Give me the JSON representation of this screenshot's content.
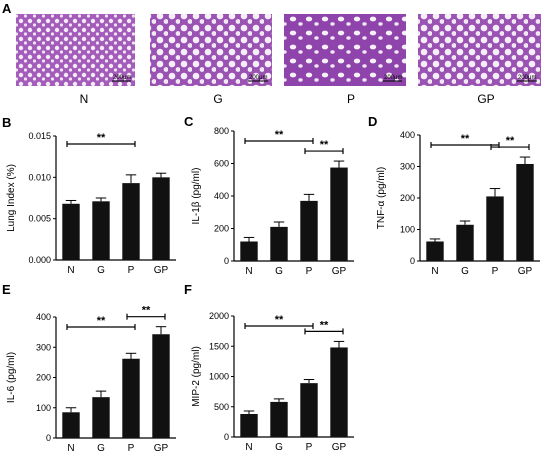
{
  "panel_a": {
    "letter": "A",
    "images": [
      {
        "label": "N",
        "scale": "200μm"
      },
      {
        "label": "G",
        "scale": "200μm"
      },
      {
        "label": "P",
        "scale": "200μm"
      },
      {
        "label": "GP",
        "scale": "200μm"
      }
    ]
  },
  "colors": {
    "bar": "#111111",
    "tissue": "#a259b8",
    "tissue_dark": "#7a3e98",
    "tissue_light": "#c99bd6"
  },
  "chart_data": [
    {
      "letter": "B",
      "type": "bar",
      "categories": [
        "N",
        "G",
        "P",
        "GP"
      ],
      "values": [
        0.0068,
        0.0071,
        0.0093,
        0.01
      ],
      "errors": [
        0.0004,
        0.0004,
        0.001,
        0.0005
      ],
      "ylabel": "Lung Index (%)",
      "ylim": [
        0,
        0.015
      ],
      "yticks": [
        "0.000",
        "0.005",
        "0.010",
        "0.015"
      ],
      "yticks_values": [
        0,
        0.005,
        0.01,
        0.015
      ],
      "significance": [
        {
          "from": 0,
          "to": 2,
          "label": "**"
        }
      ]
    },
    {
      "letter": "C",
      "type": "bar",
      "categories": [
        "N",
        "G",
        "P",
        "GP"
      ],
      "values": [
        120,
        210,
        370,
        575
      ],
      "errors": [
        25,
        30,
        40,
        40
      ],
      "ylabel": "IL-1β (pg/ml)",
      "ylim": [
        0,
        800
      ],
      "yticks": [
        "0",
        "200",
        "400",
        "600",
        "800"
      ],
      "yticks_values": [
        0,
        200,
        400,
        600,
        800
      ],
      "significance": [
        {
          "from": 0,
          "to": 2,
          "label": "**"
        },
        {
          "from": 2,
          "to": 3,
          "label": "**"
        }
      ]
    },
    {
      "letter": "D",
      "type": "bar",
      "categories": [
        "N",
        "G",
        "P",
        "GP"
      ],
      "values": [
        62,
        115,
        205,
        308
      ],
      "errors": [
        8,
        12,
        25,
        22
      ],
      "ylabel": "TNF-α (pg/ml)",
      "ylim": [
        0,
        400
      ],
      "yticks": [
        "0",
        "100",
        "200",
        "300",
        "400"
      ],
      "yticks_values": [
        0,
        100,
        200,
        300,
        400
      ],
      "significance": [
        {
          "from": 0,
          "to": 2,
          "label": "**"
        },
        {
          "from": 2,
          "to": 3,
          "label": "**"
        }
      ]
    },
    {
      "letter": "E",
      "type": "bar",
      "categories": [
        "N",
        "G",
        "P",
        "GP"
      ],
      "values": [
        85,
        135,
        262,
        343
      ],
      "errors": [
        15,
        20,
        18,
        25
      ],
      "ylabel": "IL-6 (pg/ml)",
      "ylim": [
        0,
        400
      ],
      "yticks": [
        "0",
        "100",
        "200",
        "300",
        "400"
      ],
      "yticks_values": [
        0,
        100,
        200,
        300,
        400
      ],
      "significance": [
        {
          "from": 0,
          "to": 2,
          "label": "**"
        },
        {
          "from": 2,
          "to": 3,
          "label": "**"
        }
      ]
    },
    {
      "letter": "F",
      "type": "bar",
      "categories": [
        "N",
        "G",
        "P",
        "GP"
      ],
      "values": [
        380,
        580,
        890,
        1480
      ],
      "errors": [
        50,
        50,
        60,
        100
      ],
      "ylabel": "MIP-2 (pg/ml)",
      "ylim": [
        0,
        2000
      ],
      "yticks": [
        "0",
        "500",
        "1000",
        "1500",
        "2000"
      ],
      "yticks_values": [
        0,
        500,
        1000,
        1500,
        2000
      ],
      "significance": [
        {
          "from": 0,
          "to": 2,
          "label": "**"
        },
        {
          "from": 2,
          "to": 3,
          "label": "**"
        }
      ]
    }
  ]
}
